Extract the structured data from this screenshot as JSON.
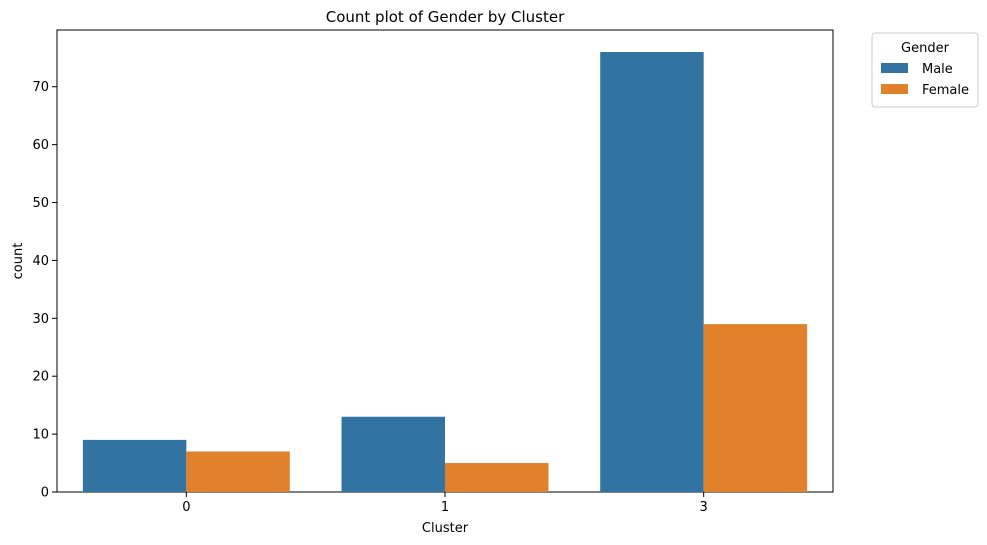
{
  "chart_data": {
    "type": "bar",
    "title": "Count plot of Gender by Cluster",
    "xlabel": "Cluster",
    "ylabel": "count",
    "categories": [
      "0",
      "1",
      "3"
    ],
    "series": [
      {
        "name": "Male",
        "values": [
          9,
          13,
          76
        ],
        "color": "#3274a1"
      },
      {
        "name": "Female",
        "values": [
          7,
          5,
          29
        ],
        "color": "#e1812c"
      }
    ],
    "ylim": [
      0,
      79.8
    ],
    "yticks": [
      0,
      10,
      20,
      30,
      40,
      50,
      60,
      70
    ],
    "grid": false,
    "legend": {
      "title": "Gender",
      "placement": "outside-top-right"
    }
  }
}
